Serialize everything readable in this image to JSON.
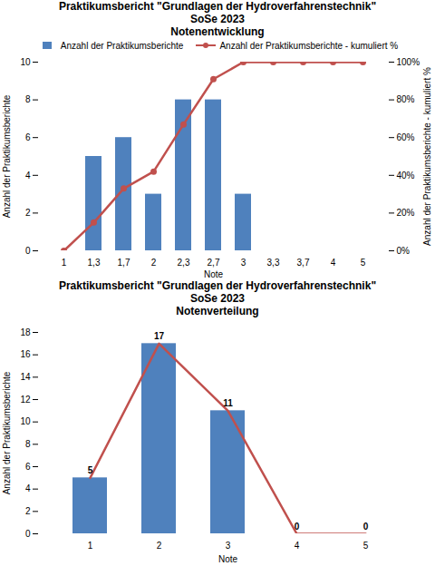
{
  "chart_data": [
    {
      "type": "bar",
      "title": [
        "Praktikumsbericht \"Grundlagen der Hydroverfahrenstechnik\"",
        "SoSe 2023",
        "Notenentwicklung"
      ],
      "x_label": "Note",
      "y_label": "Anzahl der Praktikumsberichte",
      "y2_label": "Anzahl der Praktikumsberichte - kumuliert %",
      "categories": [
        "1",
        "1,3",
        "1,7",
        "2",
        "2,3",
        "2,7",
        "3",
        "3,3",
        "3,7",
        "4",
        "5"
      ],
      "series": [
        {
          "name": "Anzahl der Praktikumsberichte",
          "type": "bar",
          "color": "#4f81bd",
          "values": [
            0,
            5,
            6,
            3,
            8,
            8,
            3,
            0,
            0,
            0,
            0
          ]
        },
        {
          "name": "Anzahl der Praktikumsberichte - kumuliert %",
          "type": "line",
          "axis": "y2",
          "color": "#c0504d",
          "marker": "circle",
          "values": [
            0,
            15,
            33,
            42,
            67,
            91,
            100,
            100,
            100,
            100,
            100
          ]
        }
      ],
      "ylim": [
        0,
        10
      ],
      "yticks": [
        0,
        2,
        4,
        6,
        8,
        10
      ],
      "y2lim": [
        0,
        100
      ],
      "y2ticks": [
        {
          "value": 0,
          "label": "0%"
        },
        {
          "value": 20,
          "label": "20%"
        },
        {
          "value": 40,
          "label": "40%"
        },
        {
          "value": 60,
          "label": "60%"
        },
        {
          "value": 80,
          "label": "80%"
        },
        {
          "value": 100,
          "label": "100%"
        }
      ],
      "legend": "top",
      "grid": false
    },
    {
      "type": "bar",
      "title": [
        "Praktikumsbericht \"Grundlagen der Hydroverfahrenstechnik\"",
        "SoSe 2023",
        "Notenverteilung"
      ],
      "x_label": "Note",
      "y_label": "Anzahl der Praktikumsberichte",
      "categories": [
        "1",
        "2",
        "3",
        "4",
        "5"
      ],
      "series": [
        {
          "type": "bar",
          "color": "#4f81bd",
          "values": [
            5,
            17,
            11,
            0,
            0
          ]
        },
        {
          "type": "line",
          "color": "#c0504d",
          "values": [
            5,
            17,
            11,
            0,
            0
          ]
        }
      ],
      "ylim": [
        0,
        18
      ],
      "yticks": [
        0,
        2,
        4,
        6,
        8,
        10,
        12,
        14,
        16,
        18
      ],
      "data_labels": true,
      "grid": false
    }
  ]
}
